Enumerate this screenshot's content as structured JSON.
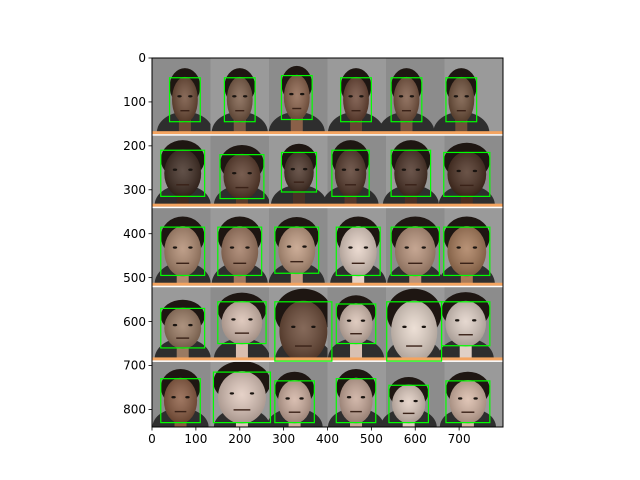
{
  "chart_data": {
    "type": "image",
    "title": "",
    "xlabel": "",
    "ylabel": "",
    "xlim": [
      0,
      800
    ],
    "ylim": [
      840,
      0
    ],
    "x_ticks": [
      0,
      100,
      200,
      300,
      400,
      500,
      600,
      700
    ],
    "y_ticks": [
      0,
      100,
      200,
      300,
      400,
      500,
      600,
      700,
      800
    ],
    "image_content": "grid of face photographs with green bounding boxes",
    "grid": {
      "rows": 5,
      "cols": 6
    },
    "row_separators_y": [
      170,
      335,
      515,
      685
    ],
    "row_separator_color": "#f4a460",
    "box_color": "#00ff00",
    "face_boxes": [
      [
        [
          40,
          45,
          110,
          145
        ],
        [
          165,
          45,
          235,
          145
        ],
        [
          295,
          40,
          365,
          140
        ],
        [
          430,
          45,
          500,
          145
        ],
        [
          545,
          45,
          615,
          145
        ],
        [
          670,
          45,
          740,
          145
        ]
      ],
      [
        [
          20,
          210,
          120,
          315
        ],
        [
          155,
          220,
          255,
          320
        ],
        [
          295,
          215,
          375,
          305
        ],
        [
          410,
          210,
          495,
          315
        ],
        [
          545,
          210,
          635,
          315
        ],
        [
          665,
          215,
          770,
          315
        ]
      ],
      [
        [
          20,
          385,
          120,
          495
        ],
        [
          150,
          385,
          250,
          495
        ],
        [
          280,
          385,
          380,
          490
        ],
        [
          420,
          385,
          520,
          495
        ],
        [
          545,
          385,
          655,
          495
        ],
        [
          665,
          385,
          770,
          495
        ]
      ],
      [
        [
          20,
          570,
          120,
          660
        ],
        [
          150,
          555,
          260,
          650
        ],
        [
          280,
          555,
          410,
          690
        ],
        [
          420,
          560,
          510,
          650
        ],
        [
          535,
          555,
          660,
          690
        ],
        [
          660,
          555,
          770,
          655
        ]
      ],
      [
        [
          20,
          730,
          110,
          830
        ],
        [
          140,
          715,
          270,
          830
        ],
        [
          280,
          735,
          370,
          830
        ],
        [
          420,
          730,
          510,
          830
        ],
        [
          540,
          745,
          630,
          830
        ],
        [
          670,
          735,
          770,
          830
        ]
      ]
    ],
    "face_tones": [
      [
        "#6e4a35",
        "#7a5a45",
        "#8a6048",
        "#6a4433",
        "#7a5540",
        "#70503a"
      ],
      [
        "#3e2a20",
        "#5a3a2a",
        "#4a3226",
        "#55382a",
        "#4a3024",
        "#4a2e20"
      ],
      [
        "#b08a70",
        "#a07860",
        "#c09a80",
        "#e6d2c6",
        "#b8927a",
        "#a87a58"
      ],
      [
        "#9a7a62",
        "#d8beb0",
        "#6a4835",
        "#d8c0b2",
        "#e8d8cc",
        "#e0d0c6"
      ],
      [
        "#8a5a40",
        "#e0c8bc",
        "#d0b0a0",
        "#c8a898",
        "#e0ccc0",
        "#d8b8a6"
      ]
    ]
  }
}
